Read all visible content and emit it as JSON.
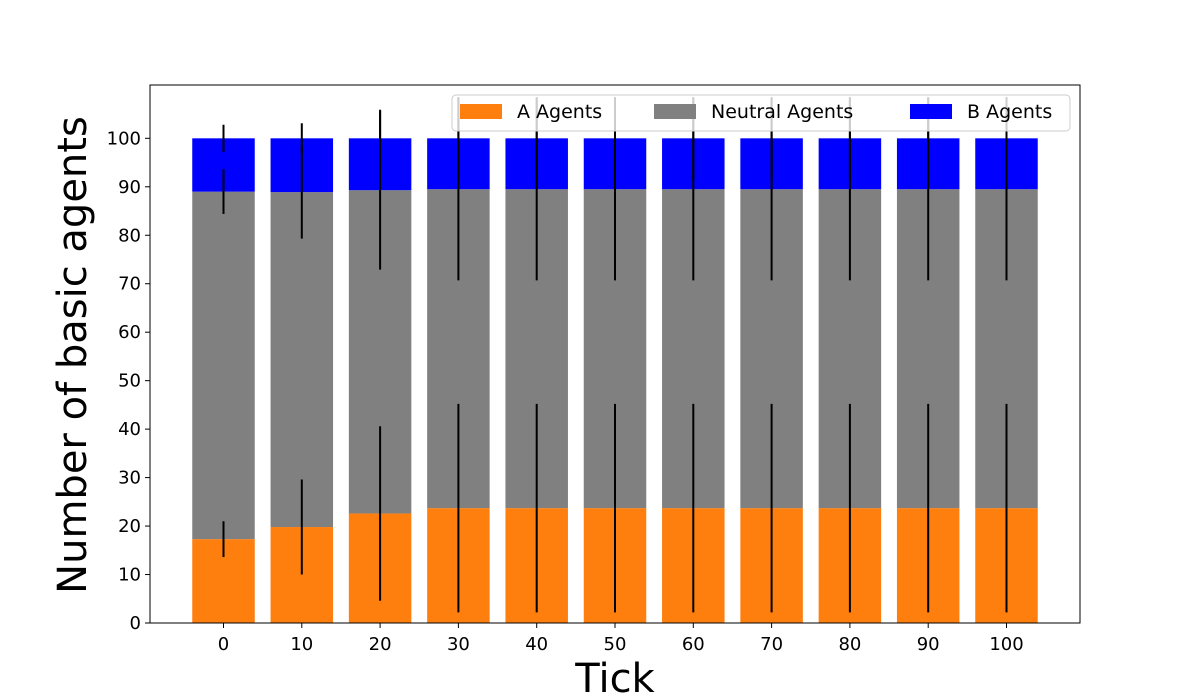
{
  "chart_data": {
    "type": "bar",
    "stacked": true,
    "categories": [
      "0",
      "10",
      "20",
      "30",
      "40",
      "50",
      "60",
      "70",
      "80",
      "90",
      "100"
    ],
    "series": [
      {
        "name": "A Agents",
        "color": "#ff7f0e",
        "values": [
          17.3,
          19.8,
          22.6,
          23.7,
          23.7,
          23.7,
          23.7,
          23.7,
          23.7,
          23.7,
          23.7
        ],
        "error": [
          3.7,
          9.8,
          18.0,
          21.5,
          21.5,
          21.5,
          21.5,
          21.5,
          21.5,
          21.5,
          21.5
        ]
      },
      {
        "name": "Neutral Agents",
        "color": "#808080",
        "values": [
          71.7,
          69.1,
          66.7,
          65.8,
          65.8,
          65.8,
          65.8,
          65.8,
          65.8,
          65.8,
          65.8
        ],
        "error": [
          4.6,
          9.6,
          16.4,
          18.8,
          18.8,
          18.8,
          18.8,
          18.8,
          18.8,
          18.8,
          18.8
        ]
      },
      {
        "name": "B Agents",
        "color": "#0000ff",
        "values": [
          11.0,
          11.1,
          10.7,
          10.5,
          10.5,
          10.5,
          10.5,
          10.5,
          10.5,
          10.5,
          10.5
        ],
        "error": [
          2.8,
          3.1,
          5.9,
          8.5,
          8.5,
          8.5,
          8.5,
          8.5,
          8.5,
          8.5,
          8.5
        ]
      }
    ],
    "xlabel": "Tick",
    "ylabel": "Number of basic agents",
    "yticks": [
      "0",
      "10",
      "20",
      "30",
      "40",
      "50",
      "60",
      "70",
      "80",
      "90",
      "100"
    ],
    "ylim": [
      0,
      111
    ],
    "grid": false,
    "legend": {
      "placement": "upper-right",
      "columns": 3
    }
  }
}
